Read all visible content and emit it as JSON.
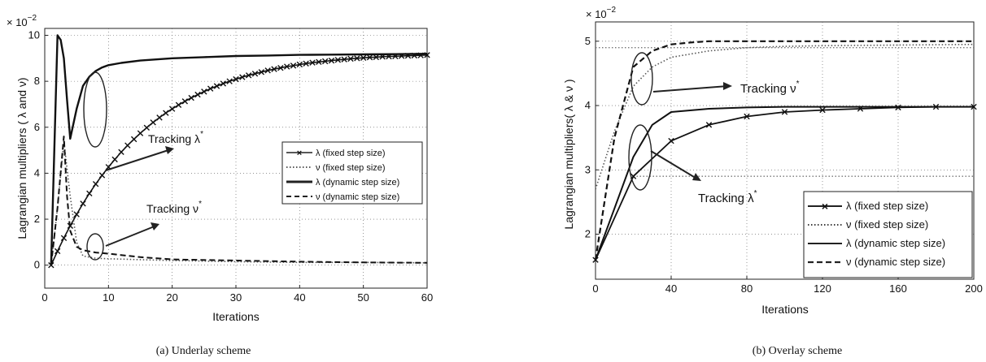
{
  "chart_data": [
    {
      "type": "line",
      "caption": "(a) Underlay scheme",
      "xlabel": "Iterations",
      "ylabel": "Lagrangian multipliers ( λ and ν)",
      "multiplier": "× 10",
      "multiplier_exp": "−2",
      "xlim": [
        0,
        60
      ],
      "ylim": [
        -1,
        10.3
      ],
      "xticks": [
        0,
        10,
        20,
        30,
        40,
        50,
        60
      ],
      "yticks": [
        0,
        2,
        4,
        6,
        8,
        10
      ],
      "grid": true,
      "legend_position": "center-right",
      "series": [
        {
          "name": "λ (fixed step size)",
          "style": "solid-x",
          "x": [
            1,
            2,
            3,
            4,
            5,
            6,
            7,
            8,
            9,
            10,
            11,
            12,
            13,
            14,
            15,
            16,
            17,
            18,
            19,
            20,
            21,
            22,
            23,
            24,
            25,
            26,
            27,
            28,
            29,
            30,
            31,
            32,
            33,
            34,
            35,
            36,
            37,
            38,
            39,
            40,
            41,
            42,
            43,
            44,
            45,
            46,
            47,
            48,
            49,
            50,
            51,
            52,
            53,
            54,
            55,
            56,
            57,
            58,
            59,
            60
          ],
          "y": [
            0,
            0.61,
            1.18,
            1.71,
            2.21,
            2.68,
            3.12,
            3.53,
            3.91,
            4.27,
            4.6,
            4.92,
            5.21,
            5.48,
            5.74,
            5.98,
            6.21,
            6.42,
            6.62,
            6.8,
            6.97,
            7.13,
            7.28,
            7.42,
            7.55,
            7.68,
            7.79,
            7.9,
            8.0,
            8.09,
            8.18,
            8.26,
            8.33,
            8.4,
            8.47,
            8.53,
            8.58,
            8.64,
            8.68,
            8.73,
            8.77,
            8.81,
            8.84,
            8.87,
            8.9,
            8.93,
            8.95,
            8.98,
            9.0,
            9.02,
            9.04,
            9.05,
            9.07,
            9.08,
            9.09,
            9.1,
            9.11,
            9.12,
            9.13,
            9.14
          ]
        },
        {
          "name": "ν (fixed step size)",
          "style": "dotted",
          "x": [
            1,
            2,
            3,
            4,
            5,
            6,
            8,
            10,
            20,
            30,
            40,
            50,
            60
          ],
          "y": [
            0,
            2.5,
            5.4,
            3.0,
            1.0,
            0.4,
            0.3,
            0.28,
            0.2,
            0.15,
            0.12,
            0.12,
            0.1
          ]
        },
        {
          "name": "λ (dynamic step size)",
          "style": "solid",
          "x": [
            1,
            2,
            2.5,
            3,
            3.5,
            4,
            5,
            6,
            7,
            8,
            9,
            10,
            12,
            15,
            20,
            25,
            30,
            35,
            40,
            45,
            50,
            55,
            60
          ],
          "y": [
            0,
            10,
            9.8,
            9.0,
            7.2,
            5.5,
            6.8,
            7.8,
            8.2,
            8.45,
            8.6,
            8.7,
            8.8,
            8.9,
            9.0,
            9.05,
            9.1,
            9.12,
            9.15,
            9.16,
            9.17,
            9.18,
            9.2
          ]
        },
        {
          "name": "ν (dynamic step size)",
          "style": "dashed",
          "x": [
            1,
            2,
            3,
            3.5,
            4,
            5,
            6,
            8,
            10,
            15,
            20,
            30,
            40,
            50,
            60
          ],
          "y": [
            0,
            2.5,
            5.6,
            3.0,
            1.5,
            0.8,
            0.65,
            0.55,
            0.5,
            0.35,
            0.25,
            0.2,
            0.15,
            0.12,
            0.1
          ]
        }
      ],
      "annotations": [
        {
          "text": "Tracking λ",
          "sup": "*"
        },
        {
          "text": "Tracking ν",
          "sup": "*"
        }
      ]
    },
    {
      "type": "line",
      "caption": "(b) Overlay scheme",
      "xlabel": "Iterations",
      "ylabel": "Lagrangian multipliers( λ & ν )",
      "multiplier": "× 10",
      "multiplier_exp": "−2",
      "xlim": [
        0,
        200
      ],
      "ylim": [
        1.3,
        5.3
      ],
      "xticks": [
        0,
        40,
        80,
        120,
        160,
        200
      ],
      "yticks": [
        2,
        3,
        4,
        5
      ],
      "grid": true,
      "legend_position": "bottom-right",
      "series": [
        {
          "name": "λ (fixed step size)",
          "style": "solid-x",
          "x": [
            0,
            20,
            40,
            60,
            80,
            100,
            120,
            140,
            160,
            180,
            200
          ],
          "y": [
            1.6,
            2.9,
            3.45,
            3.7,
            3.83,
            3.9,
            3.93,
            3.95,
            3.97,
            3.98,
            3.98
          ]
        },
        {
          "name": "ν (fixed step size)",
          "style": "dotted",
          "x": [
            0,
            10,
            20,
            30,
            40,
            60,
            80,
            100,
            120,
            160,
            200
          ],
          "y": [
            2.7,
            3.6,
            4.3,
            4.6,
            4.75,
            4.85,
            4.9,
            4.92,
            4.93,
            4.94,
            4.95
          ]
        },
        {
          "name": "λ (dynamic step size)",
          "style": "solid",
          "x": [
            0,
            10,
            20,
            30,
            40,
            60,
            80,
            100,
            150,
            200
          ],
          "y": [
            1.6,
            2.4,
            3.2,
            3.7,
            3.9,
            3.95,
            3.97,
            3.98,
            3.98,
            3.98
          ]
        },
        {
          "name": "ν (dynamic step size)",
          "style": "dashed",
          "x": [
            0,
            10,
            20,
            30,
            40,
            50,
            60,
            80,
            100,
            150,
            200
          ],
          "y": [
            1.6,
            3.5,
            4.6,
            4.85,
            4.95,
            4.98,
            5.0,
            5.0,
            5.0,
            5.0,
            5.0
          ]
        }
      ],
      "extra_lines": [
        {
          "style": "dotted",
          "x": [
            0,
            200
          ],
          "y": [
            4.9,
            4.9
          ]
        },
        {
          "style": "dotted",
          "x": [
            20,
            200
          ],
          "y": [
            2.9,
            2.9
          ]
        }
      ],
      "annotations": [
        {
          "text": "Tracking ν",
          "sup": "*"
        },
        {
          "text": "Tracking λ",
          "sup": "*"
        }
      ]
    }
  ]
}
